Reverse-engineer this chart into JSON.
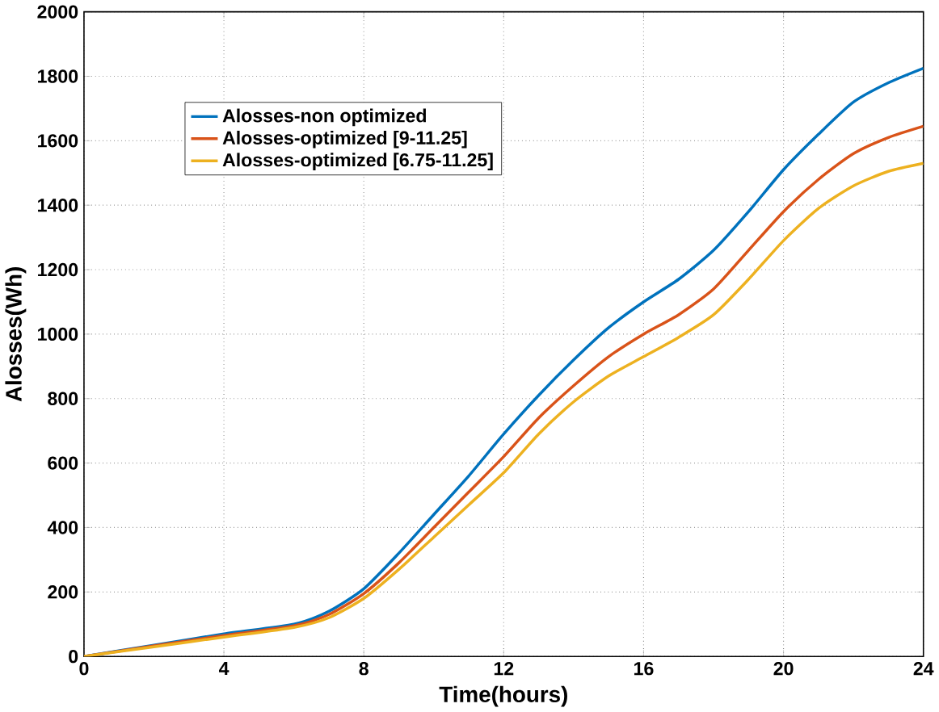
{
  "chart_data": {
    "type": "line",
    "xlabel": "Time(hours)",
    "ylabel": "Alosses(Wh)",
    "x": [
      0,
      2,
      4,
      6,
      7,
      8,
      9,
      10,
      11,
      12,
      13,
      14,
      15,
      16,
      17,
      18,
      19,
      20,
      21,
      22,
      23,
      24
    ],
    "series": [
      {
        "name": "Alosses-non optimized",
        "color": "#0072bd",
        "values": [
          0,
          35,
          70,
          100,
          140,
          210,
          320,
          440,
          560,
          690,
          810,
          920,
          1020,
          1100,
          1170,
          1260,
          1380,
          1510,
          1620,
          1720,
          1780,
          1825
        ]
      },
      {
        "name": "Alosses-optimized [9-11.25]",
        "color": "#d95319",
        "values": [
          0,
          33,
          65,
          95,
          130,
          195,
          290,
          400,
          510,
          620,
          740,
          840,
          930,
          1000,
          1060,
          1140,
          1260,
          1380,
          1480,
          1560,
          1610,
          1645
        ]
      },
      {
        "name": "Alosses-optimized [6.75-11.25]",
        "color": "#edb120",
        "values": [
          0,
          30,
          60,
          90,
          120,
          180,
          270,
          370,
          470,
          570,
          690,
          790,
          870,
          930,
          990,
          1060,
          1170,
          1290,
          1390,
          1460,
          1505,
          1530
        ]
      }
    ],
    "xlim": [
      0,
      24
    ],
    "ylim": [
      0,
      2000
    ],
    "xticks": [
      0,
      4,
      8,
      12,
      16,
      20,
      24
    ],
    "yticks": [
      0,
      200,
      400,
      600,
      800,
      1000,
      1200,
      1400,
      1600,
      1800,
      2000
    ],
    "grid": true,
    "legend": "top left",
    "line_style": "solid",
    "marker": "none"
  }
}
